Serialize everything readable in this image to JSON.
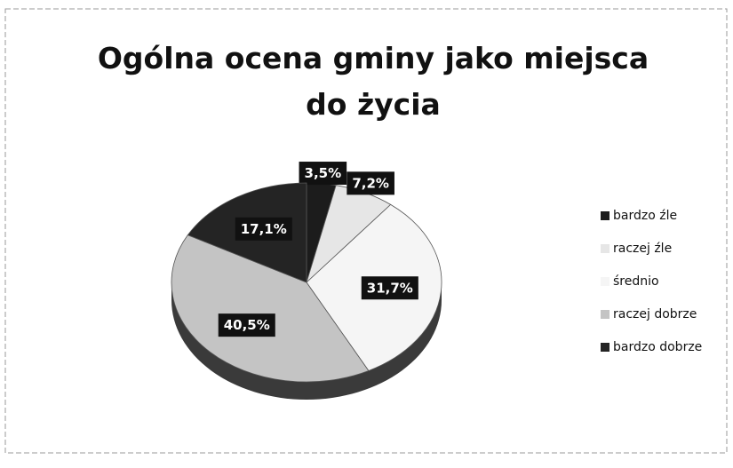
{
  "chart_data": {
    "type": "pie",
    "title": "Ogólna ocena gminy jako miejsca do życia",
    "categories": [
      "bardzo źle",
      "raczej źle",
      "średnio",
      "raczej dobrze",
      "bardzo dobrze"
    ],
    "values": [
      3.5,
      7.2,
      31.7,
      40.5,
      17.1
    ],
    "value_labels": [
      "3,5%",
      "7,2%",
      "31,7%",
      "40,5%",
      "17,1%"
    ],
    "colors": [
      "#1c1c1c",
      "#e6e6e6",
      "#f5f5f5",
      "#c4c4c4",
      "#242424"
    ],
    "legend": "right"
  }
}
